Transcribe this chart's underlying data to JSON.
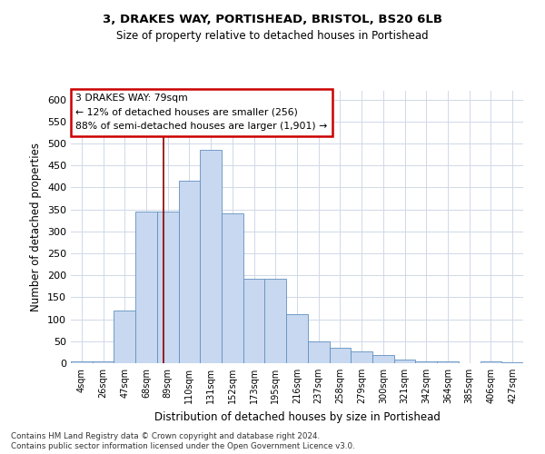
{
  "title_line1": "3, DRAKES WAY, PORTISHEAD, BRISTOL, BS20 6LB",
  "title_line2": "Size of property relative to detached houses in Portishead",
  "xlabel": "Distribution of detached houses by size in Portishead",
  "ylabel": "Number of detached properties",
  "footer_line1": "Contains HM Land Registry data © Crown copyright and database right 2024.",
  "footer_line2": "Contains public sector information licensed under the Open Government Licence v3.0.",
  "property_label": "3 DRAKES WAY: 79sqm",
  "annotation_line1": "← 12% of detached houses are smaller (256)",
  "annotation_line2": "88% of semi-detached houses are larger (1,901) →",
  "bar_color": "#c8d8f0",
  "bar_edge_color": "#6090c0",
  "vline_color": "#8b0000",
  "annotation_box_color": "#ffffff",
  "annotation_box_edge": "#cc0000",
  "categories": [
    "4sqm",
    "26sqm",
    "47sqm",
    "68sqm",
    "89sqm",
    "110sqm",
    "131sqm",
    "152sqm",
    "173sqm",
    "195sqm",
    "216sqm",
    "237sqm",
    "258sqm",
    "279sqm",
    "300sqm",
    "321sqm",
    "342sqm",
    "364sqm",
    "385sqm",
    "406sqm",
    "427sqm"
  ],
  "values": [
    5,
    5,
    120,
    345,
    345,
    415,
    485,
    340,
    192,
    192,
    112,
    50,
    35,
    26,
    18,
    9,
    5,
    4,
    1,
    5,
    3
  ],
  "ylim": [
    0,
    620
  ],
  "yticks": [
    0,
    50,
    100,
    150,
    200,
    250,
    300,
    350,
    400,
    450,
    500,
    550,
    600
  ],
  "vline_position": 3.8,
  "background_color": "#ffffff",
  "grid_color": "#d0d8e8"
}
